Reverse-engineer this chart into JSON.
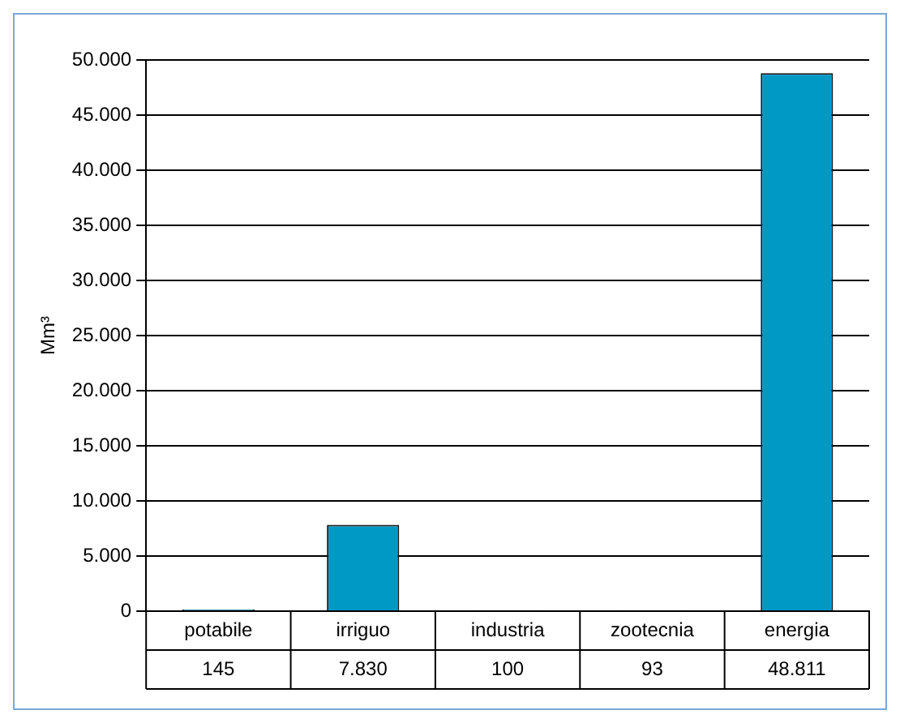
{
  "chart_data": {
    "type": "bar",
    "ylabel": "Mm³",
    "categories": [
      "potabile",
      "irriguo",
      "industria",
      "zootecnia",
      "energia"
    ],
    "values": [
      145,
      7830,
      100,
      93,
      48811
    ],
    "value_labels": [
      "145",
      "7.830",
      "100",
      "93",
      "48.811"
    ],
    "color": "#0099c6",
    "ylim": [
      0,
      50000
    ],
    "yticks": [
      {
        "value": 0,
        "label": "0"
      },
      {
        "value": 5000,
        "label": "5.000"
      },
      {
        "value": 10000,
        "label": "10.000"
      },
      {
        "value": 15000,
        "label": "15.000"
      },
      {
        "value": 20000,
        "label": "20.000"
      },
      {
        "value": 25000,
        "label": "25.000"
      },
      {
        "value": 30000,
        "label": "30.000"
      },
      {
        "value": 35000,
        "label": "35.000"
      },
      {
        "value": 40000,
        "label": "40.000"
      },
      {
        "value": 45000,
        "label": "45.000"
      },
      {
        "value": 50000,
        "label": "50.000"
      }
    ],
    "grid": "y",
    "legend": false
  }
}
